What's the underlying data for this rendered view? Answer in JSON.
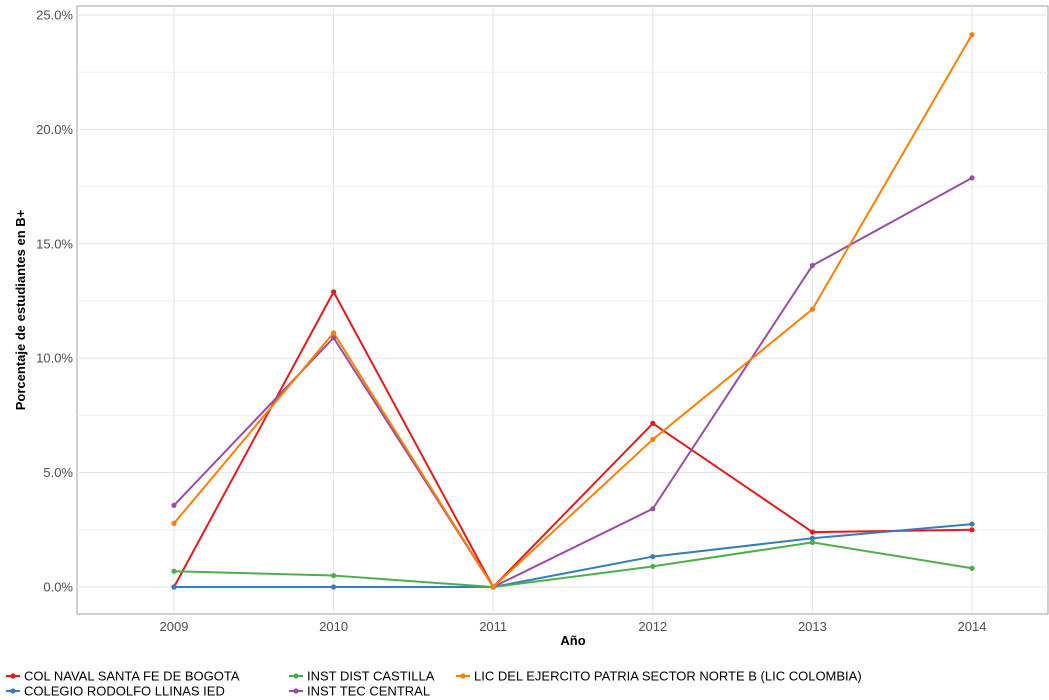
{
  "chart_data": {
    "type": "line",
    "x": [
      "2009",
      "2010",
      "2011",
      "2012",
      "2013",
      "2014"
    ],
    "xlabel": "Año",
    "ylabel": "Porcentaje de estudiantes en B+",
    "ylim": [
      -0.012,
      0.253
    ],
    "y_ticks": [
      0,
      0.05,
      0.1,
      0.15,
      0.2,
      0.25
    ],
    "y_tick_labels": [
      "0.0%",
      "5.0%",
      "10.0%",
      "15.0%",
      "20.0%",
      "25.0%"
    ],
    "grid": true,
    "legend_position": "bottom-left",
    "series": [
      {
        "name": "COL NAVAL SANTA FE DE BOGOTA",
        "color": "#e41a1c",
        "values": [
          0.0,
          0.129,
          0.0,
          0.0715,
          0.024,
          0.025
        ]
      },
      {
        "name": "COLEGIO RODOLFO LLINAS IED",
        "color": "#377eb8",
        "values": [
          0.0,
          0.0,
          0.0,
          0.0133,
          0.0213,
          0.0275
        ]
      },
      {
        "name": "INST DIST CASTILLA",
        "color": "#4daf4a",
        "values": [
          0.0069,
          0.005,
          0.0,
          0.009,
          0.0195,
          0.0082
        ]
      },
      {
        "name": "INST TEC CENTRAL",
        "color": "#984ea3",
        "values": [
          0.0357,
          0.1089,
          0.0,
          0.0342,
          0.1405,
          0.1788
        ]
      },
      {
        "name": "LIC DEL EJERCITO PATRIA SECTOR NORTE B (LIC COLOMBIA)",
        "color": "#ff7f00",
        "values": [
          0.0278,
          0.1111,
          0.0,
          0.0645,
          0.1214,
          0.2414
        ]
      }
    ],
    "legend_order": [
      0,
      2,
      4,
      1,
      3
    ]
  }
}
